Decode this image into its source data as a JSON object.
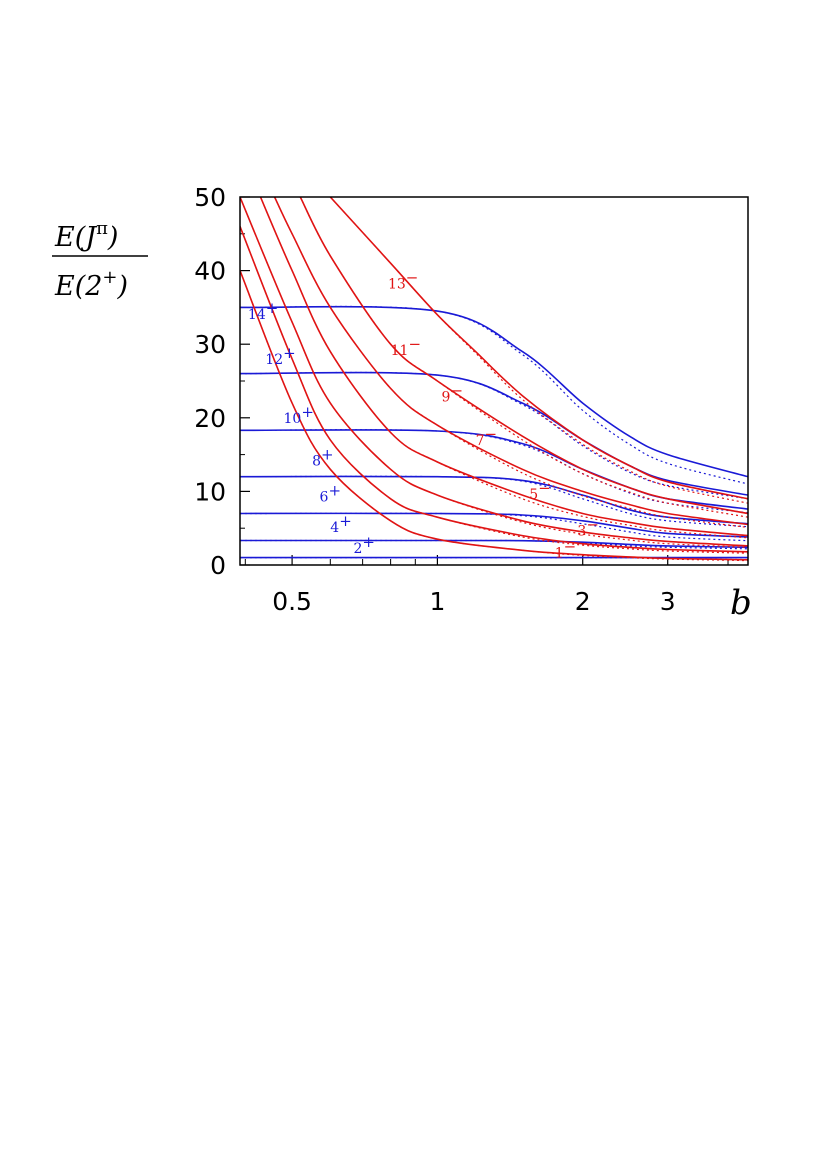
{
  "chart_data": {
    "type": "line",
    "title": "",
    "xlabel": "b",
    "ylabel": {
      "num_a": "E(J",
      "num_sup": "π",
      "num_b": ")",
      "den_a": "E(2",
      "den_sup": "+",
      "den_b": ")"
    },
    "x_scale": "log",
    "xlim": [
      0.39,
      4.4
    ],
    "ylim": [
      0,
      50
    ],
    "x_ticks": [
      {
        "value": 0.5,
        "label": "0.5"
      },
      {
        "value": 1,
        "label": "1"
      },
      {
        "value": 2,
        "label": "2"
      },
      {
        "value": 3,
        "label": "3"
      }
    ],
    "y_ticks": [
      {
        "value": 0,
        "label": "0"
      },
      {
        "value": 10,
        "label": "10"
      },
      {
        "value": 20,
        "label": "20"
      },
      {
        "value": 30,
        "label": "30"
      },
      {
        "value": 40,
        "label": "40"
      },
      {
        "value": 50,
        "label": "50"
      }
    ],
    "colors": {
      "positive": "#1a1ad6",
      "negative": "#e01414",
      "axis": "#000000"
    },
    "series": [
      {
        "name": "2+",
        "parity": "positive",
        "label_at": [
          0.67,
          1.6
        ],
        "x": [
          0.39,
          1.0,
          1.5,
          2.0,
          2.5,
          3.0,
          4.4
        ],
        "y": [
          1,
          1,
          1,
          1,
          1,
          1,
          1
        ],
        "y_dotted": [
          1,
          1,
          1,
          1,
          1,
          1,
          1
        ]
      },
      {
        "name": "4+",
        "parity": "positive",
        "label_at": [
          0.6,
          4.5
        ],
        "x": [
          0.39,
          1.0,
          1.5,
          2.0,
          2.5,
          3.0,
          4.4
        ],
        "y": [
          3.33,
          3.33,
          3.3,
          3.1,
          2.8,
          2.6,
          2.4
        ],
        "y_dotted": [
          3.33,
          3.33,
          3.3,
          3.0,
          2.6,
          2.4,
          2.2
        ]
      },
      {
        "name": "6+",
        "parity": "positive",
        "label_at": [
          0.57,
          8.6
        ],
        "x": [
          0.39,
          1.0,
          1.5,
          2.0,
          2.5,
          3.0,
          4.4
        ],
        "y": [
          7.0,
          7.0,
          6.8,
          6.0,
          5.0,
          4.3,
          3.8
        ],
        "y_dotted": [
          7.0,
          7.0,
          6.7,
          5.6,
          4.5,
          3.8,
          3.3
        ]
      },
      {
        "name": "8+",
        "parity": "positive",
        "label_at": [
          0.55,
          13.5
        ],
        "x": [
          0.39,
          1.0,
          1.5,
          2.0,
          2.5,
          3.0,
          4.4
        ],
        "y": [
          12.0,
          12.0,
          11.5,
          9.5,
          7.5,
          6.5,
          5.6
        ],
        "y_dotted": [
          12.0,
          12.0,
          11.4,
          9.0,
          7.0,
          6.0,
          5.2
        ]
      },
      {
        "name": "10+",
        "parity": "positive",
        "label_at": [
          0.48,
          19.3
        ],
        "x": [
          0.39,
          1.0,
          1.5,
          2.0,
          2.5,
          3.0,
          4.4
        ],
        "y": [
          18.3,
          18.2,
          16.5,
          13.0,
          10.5,
          9.0,
          7.6
        ],
        "y_dotted": [
          18.3,
          18.2,
          16.3,
          12.4,
          9.8,
          8.4,
          7.1
        ]
      },
      {
        "name": "12+",
        "parity": "positive",
        "label_at": [
          0.44,
          27.3
        ],
        "x": [
          0.39,
          1.0,
          1.5,
          2.0,
          2.5,
          3.0,
          4.4
        ],
        "y": [
          26.0,
          25.8,
          22.0,
          17.0,
          13.5,
          11.5,
          9.5
        ],
        "y_dotted": [
          26.0,
          25.8,
          21.8,
          16.2,
          12.6,
          10.8,
          9.0
        ]
      },
      {
        "name": "14+",
        "parity": "positive",
        "label_at": [
          0.405,
          33.4
        ],
        "x": [
          0.39,
          1.0,
          1.5,
          2.0,
          2.5,
          3.0,
          4.4
        ],
        "y": [
          35.0,
          34.5,
          29.0,
          22.0,
          17.5,
          15.0,
          12.0
        ],
        "y_dotted": [
          35.0,
          34.5,
          28.6,
          21.0,
          16.4,
          13.8,
          11.0
        ]
      },
      {
        "name": "1−",
        "parity": "negative",
        "label_at": [
          1.75,
          1.0
        ],
        "x": [
          0.39,
          0.5,
          0.6,
          0.8,
          1.0,
          1.5,
          2.0,
          2.5,
          3.0,
          4.4
        ],
        "y": [
          40,
          22,
          13,
          6,
          3.5,
          2.0,
          1.4,
          1.1,
          0.9,
          0.7
        ],
        "y_dotted": [
          40,
          22,
          13,
          6,
          3.5,
          2.0,
          1.3,
          1.0,
          0.8,
          0.6
        ]
      },
      {
        "name": "3−",
        "parity": "negative",
        "label_at": [
          1.95,
          4.0
        ],
        "x": [
          0.39,
          0.5,
          0.6,
          0.8,
          1.0,
          1.5,
          2.0,
          2.5,
          3.0,
          4.4
        ],
        "y": [
          46,
          28,
          17,
          9,
          6.5,
          4.0,
          2.9,
          2.4,
          2.1,
          1.8
        ],
        "y_dotted": [
          46,
          28,
          17,
          9,
          6.5,
          3.8,
          2.7,
          2.2,
          1.9,
          1.6
        ]
      },
      {
        "name": "5−",
        "parity": "negative",
        "label_at": [
          1.55,
          9.0
        ],
        "x": [
          0.39,
          0.5,
          0.6,
          0.8,
          1.0,
          1.5,
          2.0,
          2.5,
          3.0,
          4.4
        ],
        "y": [
          50,
          33,
          22,
          13,
          9.5,
          6.0,
          4.5,
          3.7,
          3.2,
          2.6
        ],
        "y_dotted": [
          50,
          33,
          22,
          13,
          9.5,
          5.8,
          4.2,
          3.4,
          2.9,
          2.4
        ]
      },
      {
        "name": "7−",
        "parity": "negative",
        "label_at": [
          1.2,
          16.3
        ],
        "x": [
          0.43,
          0.5,
          0.6,
          0.8,
          1.0,
          1.5,
          2.0,
          2.5,
          3.0,
          4.4
        ],
        "y": [
          50,
          40,
          29,
          18,
          14.0,
          9.5,
          7.0,
          5.8,
          5.0,
          4.0
        ],
        "y_dotted": [
          50,
          40,
          29,
          18,
          14.0,
          9.0,
          6.6,
          5.4,
          4.6,
          3.7
        ]
      },
      {
        "name": "9−",
        "parity": "negative",
        "label_at": [
          1.02,
          22.2
        ],
        "x": [
          0.46,
          0.5,
          0.6,
          0.8,
          1.0,
          1.5,
          2.0,
          2.5,
          3.0,
          4.4
        ],
        "y": [
          50,
          45,
          35,
          24,
          19.0,
          13.0,
          10.0,
          8.2,
          7.0,
          5.5
        ],
        "y_dotted": [
          50,
          45,
          35,
          24,
          19.0,
          12.5,
          9.4,
          7.7,
          6.5,
          5.1
        ]
      },
      {
        "name": "11−",
        "parity": "negative",
        "label_at": [
          0.8,
          28.5
        ],
        "x": [
          0.52,
          0.6,
          0.8,
          1.0,
          1.5,
          2.0,
          2.5,
          3.0,
          4.4
        ],
        "y": [
          50,
          42,
          30,
          25.0,
          17.5,
          13.0,
          10.5,
          9.0,
          7.0
        ],
        "y_dotted": [
          50,
          42,
          30,
          25.0,
          17.0,
          12.4,
          9.9,
          8.4,
          6.5
        ]
      },
      {
        "name": "13−",
        "parity": "negative",
        "label_at": [
          0.79,
          37.6
        ],
        "x": [
          0.6,
          0.8,
          1.0,
          1.2,
          1.5,
          2.0,
          2.5,
          3.0,
          4.4
        ],
        "y": [
          50,
          41,
          34,
          29.0,
          23.0,
          17.0,
          13.5,
          11.3,
          9.0
        ],
        "y_dotted": [
          50,
          41,
          34,
          28.8,
          22.5,
          16.4,
          12.8,
          10.7,
          8.4
        ]
      }
    ]
  }
}
